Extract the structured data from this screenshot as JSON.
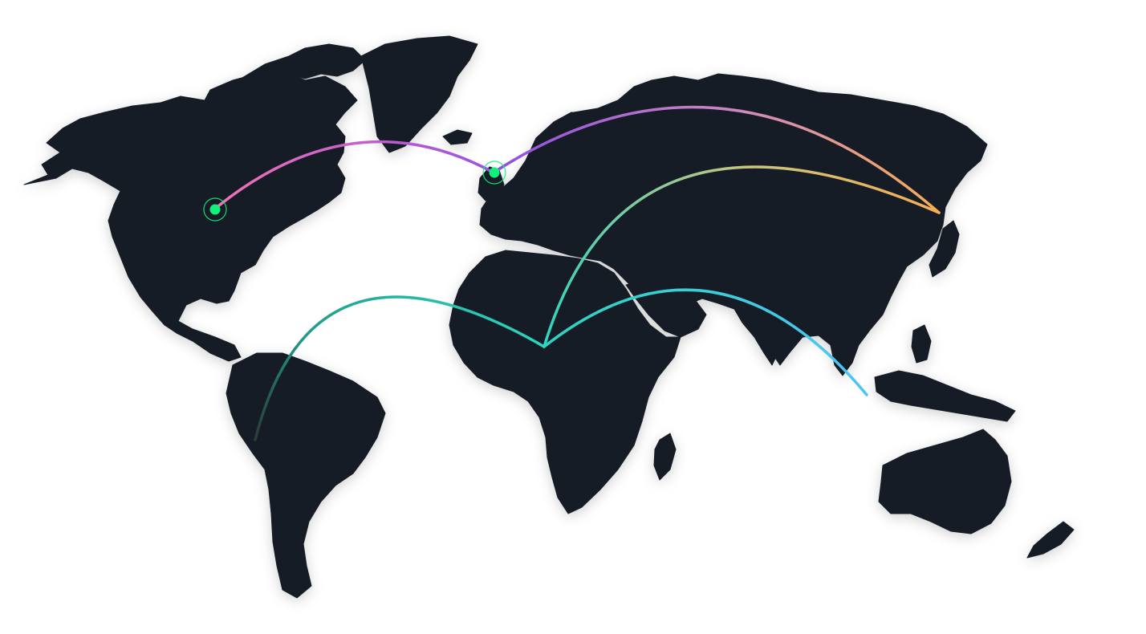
{
  "map": {
    "land_color": "#161b27",
    "background_color": "#ffffff",
    "marker_color": "#11f07a",
    "markers": [
      {
        "name": "north-america-marker"
      },
      {
        "name": "europe-marker"
      }
    ],
    "routes": [
      {
        "name": "route-north-america-to-europe",
        "colors": [
          "#f472b6",
          "#9b51e0"
        ]
      },
      {
        "name": "route-europe-to-east-asia",
        "colors": [
          "#9b51e0",
          "#d08ac0",
          "#f6ad55"
        ]
      },
      {
        "name": "route-africa-to-east-asia",
        "colors": [
          "#2dd4bf",
          "#f6ad55"
        ]
      },
      {
        "name": "route-south-america-to-africa",
        "colors": [
          "#2d3a3a",
          "#2dd4bf"
        ]
      },
      {
        "name": "route-africa-to-southeast-asia",
        "colors": [
          "#2dd4bf",
          "#4fc3f7"
        ]
      }
    ]
  }
}
